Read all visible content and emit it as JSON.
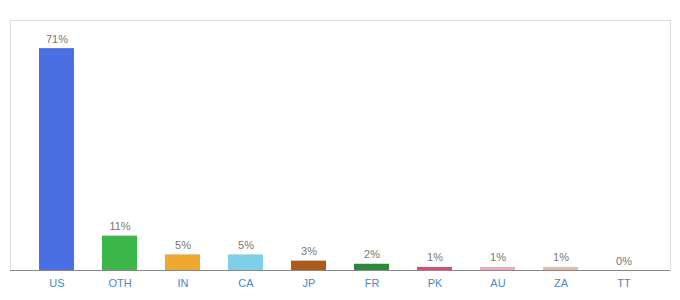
{
  "chart_data": {
    "type": "bar",
    "categories": [
      "US",
      "OTH",
      "IN",
      "CA",
      "JP",
      "FR",
      "PK",
      "AU",
      "ZA",
      "TT"
    ],
    "values": [
      71,
      11,
      5,
      5,
      3,
      2,
      1,
      1,
      1,
      0
    ],
    "value_labels": [
      "71%",
      "11%",
      "5%",
      "5%",
      "3%",
      "2%",
      "1%",
      "1%",
      "1%",
      "0%"
    ],
    "colors": [
      "#4a6fe3",
      "#3cb84a",
      "#f0a830",
      "#7ecfe8",
      "#b05a1a",
      "#2a8a3a",
      "#e8447a",
      "#f0a8c0",
      "#e8b8a8",
      "#d0d0d0"
    ],
    "ylim": [
      0,
      80
    ],
    "grid": false,
    "data_labels": true,
    "tick_labels": "x"
  }
}
